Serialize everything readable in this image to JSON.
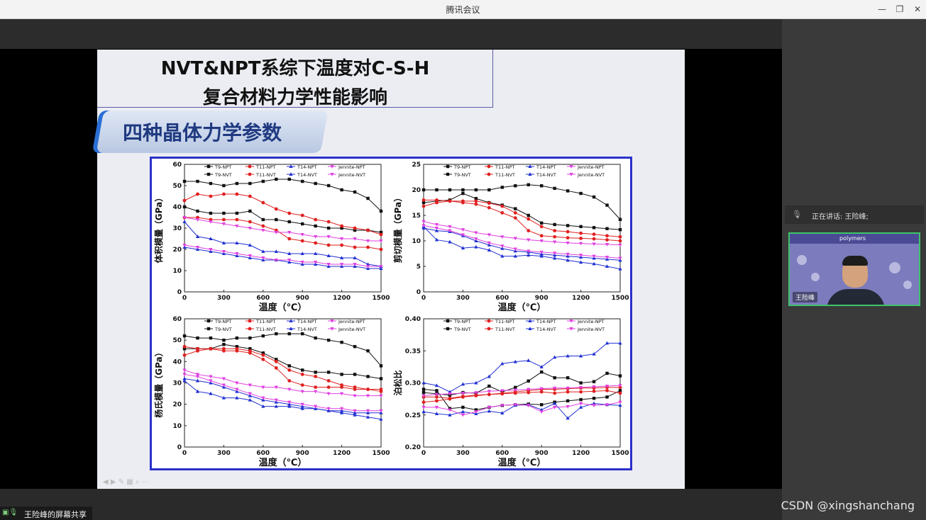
{
  "window": {
    "title": "腾讯会议"
  },
  "speaker": {
    "label": "正在讲话: 王险峰;",
    "name": "王险峰",
    "overlay_text": "polymers"
  },
  "share_label": "王险峰的屏幕共享",
  "watermark": "CSDN @xingshanchang",
  "slide": {
    "title_line1": "NVT&NPT系综下温度对C-S-H",
    "title_line2": "复合材料力学性能影响",
    "section": "四种晶体力学参数"
  },
  "chart_data": [
    {
      "type": "line",
      "ylabel": "体积模量（GPa）",
      "xlabel": "温度（℃）",
      "xlim": [
        0,
        1500
      ],
      "ylim": [
        0,
        60
      ],
      "xticks": [
        0,
        300,
        600,
        900,
        1200,
        1500
      ],
      "yticks": [
        0,
        10,
        20,
        30,
        40,
        50,
        60
      ],
      "x": [
        0,
        100,
        200,
        300,
        400,
        500,
        600,
        700,
        800,
        900,
        1000,
        1100,
        1200,
        1300,
        1400,
        1500
      ],
      "series": [
        {
          "name": "T9-NPT",
          "color": "#111111",
          "values": [
            52,
            52,
            51,
            50,
            51,
            51,
            52,
            53,
            53,
            52,
            51,
            50,
            48,
            47,
            44,
            38
          ]
        },
        {
          "name": "T9-NVT",
          "color": "#111111",
          "values": [
            40,
            38,
            37,
            37,
            37,
            38,
            34,
            34,
            33,
            32,
            31,
            30,
            30,
            29,
            29,
            28
          ]
        },
        {
          "name": "T11-NPT",
          "color": "#e02020",
          "values": [
            43,
            46,
            45,
            46,
            46,
            45,
            42,
            39,
            37,
            36,
            34,
            33,
            31,
            30,
            29,
            27
          ]
        },
        {
          "name": "T11-NVT",
          "color": "#e02020",
          "values": [
            35,
            35,
            34,
            34,
            34,
            33,
            31,
            29,
            25,
            24,
            23,
            22,
            22,
            21,
            21,
            20
          ]
        },
        {
          "name": "T14-NPT",
          "color": "#2030d0",
          "values": [
            33,
            26,
            25,
            23,
            23,
            22,
            19,
            19,
            18,
            18,
            18,
            17,
            16,
            16,
            13,
            12
          ]
        },
        {
          "name": "T14-NVT",
          "color": "#2030d0",
          "values": [
            21,
            20,
            19,
            18,
            17,
            16,
            15,
            15,
            14,
            13,
            13,
            12,
            12,
            12,
            11,
            11
          ]
        },
        {
          "name": "Jennite-NPT",
          "color": "#e040e0",
          "values": [
            35,
            34,
            33,
            32,
            31,
            30,
            29,
            28,
            28,
            27,
            26,
            26,
            25,
            25,
            24,
            24
          ]
        },
        {
          "name": "Jennite-NVT",
          "color": "#e040e0",
          "values": [
            22,
            21,
            20,
            19,
            18,
            17,
            16,
            15,
            15,
            14,
            14,
            13,
            13,
            13,
            12,
            12
          ]
        }
      ]
    },
    {
      "type": "line",
      "ylabel": "剪切模量（GPa）",
      "xlabel": "温度（℃）",
      "xlim": [
        0,
        1500
      ],
      "ylim": [
        0,
        25
      ],
      "xticks": [
        0,
        300,
        600,
        900,
        1200,
        1500
      ],
      "yticks": [
        0,
        5,
        10,
        15,
        20,
        25
      ],
      "x": [
        0,
        100,
        200,
        300,
        400,
        500,
        600,
        700,
        800,
        900,
        1000,
        1100,
        1200,
        1300,
        1400,
        1500
      ],
      "series": [
        {
          "name": "T9-NPT",
          "color": "#111111",
          "values": [
            20,
            20,
            20,
            20,
            20,
            20,
            20.5,
            20.8,
            21,
            20.8,
            20.3,
            19.8,
            19.3,
            18.6,
            17.0,
            14.2
          ]
        },
        {
          "name": "T9-NVT",
          "color": "#111111",
          "values": [
            17.5,
            17.8,
            18,
            19.3,
            18.3,
            17.5,
            17,
            16.3,
            15,
            13.5,
            13.2,
            13,
            12.8,
            12.6,
            12.4,
            12.2
          ]
        },
        {
          "name": "T11-NPT",
          "color": "#e02020",
          "values": [
            18,
            18,
            17.8,
            17.8,
            17.8,
            17.4,
            16.8,
            15.5,
            14.3,
            12.8,
            12,
            11.8,
            11.5,
            11.3,
            11,
            10.8
          ]
        },
        {
          "name": "T11-NVT",
          "color": "#e02020",
          "values": [
            16.8,
            17.5,
            17.8,
            17.5,
            17.2,
            16.5,
            15.5,
            14.5,
            12,
            11,
            10.8,
            10.6,
            10.5,
            10.4,
            10.2,
            10
          ]
        },
        {
          "name": "T14-NPT",
          "color": "#2030d0",
          "values": [
            12.8,
            10.2,
            9.8,
            8.6,
            8.8,
            8.2,
            7,
            7,
            7.2,
            7,
            6.6,
            6.2,
            5.8,
            5.5,
            5,
            4.5
          ]
        },
        {
          "name": "T14-NVT",
          "color": "#2030d0",
          "values": [
            12.5,
            12,
            11.8,
            11,
            10,
            9.2,
            8.5,
            8,
            7.8,
            7.4,
            7.2,
            7,
            6.8,
            6.6,
            6.4,
            6.2
          ]
        },
        {
          "name": "Jennite-NPT",
          "color": "#e040e0",
          "values": [
            13.8,
            13.2,
            12.8,
            12.2,
            11.6,
            11.2,
            10.8,
            10.5,
            10.2,
            10,
            9.8,
            9.6,
            9.5,
            9.4,
            9.3,
            9.2
          ]
        },
        {
          "name": "Jennite-NVT",
          "color": "#e040e0",
          "values": [
            13,
            12.5,
            12,
            11.2,
            10.4,
            9.6,
            9,
            8.4,
            8,
            7.8,
            7.6,
            7.4,
            7.2,
            7,
            6.8,
            6.6
          ]
        }
      ]
    },
    {
      "type": "line",
      "ylabel": "杨氏模量（GPa）",
      "xlabel": "温度（℃）",
      "xlim": [
        0,
        1500
      ],
      "ylim": [
        0,
        60
      ],
      "xticks": [
        0,
        300,
        600,
        900,
        1200,
        1500
      ],
      "yticks": [
        0,
        10,
        20,
        30,
        40,
        50,
        60
      ],
      "x": [
        0,
        100,
        200,
        300,
        400,
        500,
        600,
        700,
        800,
        900,
        1000,
        1100,
        1200,
        1300,
        1400,
        1500
      ],
      "series": [
        {
          "name": "T9-NPT",
          "color": "#111111",
          "values": [
            52,
            51,
            51,
            50,
            51,
            51,
            52,
            53,
            53,
            53,
            51,
            50,
            49,
            47,
            45,
            38
          ]
        },
        {
          "name": "T9-NVT",
          "color": "#111111",
          "values": [
            46,
            46,
            46,
            48,
            47,
            46,
            44,
            41,
            38,
            36,
            35,
            35,
            34,
            34,
            33,
            32
          ]
        },
        {
          "name": "T11-NPT",
          "color": "#e02020",
          "values": [
            43,
            45,
            46,
            46,
            46,
            45,
            43,
            40,
            36,
            34,
            33,
            31,
            29,
            28,
            27,
            26
          ]
        },
        {
          "name": "T11-NVT",
          "color": "#e02020",
          "values": [
            47,
            46,
            46,
            45,
            45,
            44,
            41,
            37,
            31,
            29,
            28,
            28,
            28,
            27,
            27,
            27
          ]
        },
        {
          "name": "T14-NPT",
          "color": "#2030d0",
          "values": [
            31,
            26,
            25,
            23,
            23,
            22,
            19,
            19,
            19,
            18,
            18,
            17,
            16,
            15,
            14,
            13
          ]
        },
        {
          "name": "T14-NVT",
          "color": "#2030d0",
          "values": [
            32,
            31,
            30,
            28,
            26,
            24,
            22,
            21,
            20,
            19,
            18,
            17,
            17,
            16,
            16,
            16
          ]
        },
        {
          "name": "Jennite-NPT",
          "color": "#e040e0",
          "values": [
            36,
            34,
            33,
            32,
            30,
            29,
            28,
            28,
            27,
            26,
            26,
            25,
            25,
            24,
            24,
            24
          ]
        },
        {
          "name": "Jennite-NVT",
          "color": "#e040e0",
          "values": [
            34,
            33,
            31,
            29,
            27,
            25,
            23,
            22,
            21,
            20,
            19,
            18,
            18,
            17,
            17,
            17
          ]
        }
      ]
    },
    {
      "type": "line",
      "ylabel": "泊松比",
      "xlabel": "温度（℃）",
      "xlim": [
        0,
        1500
      ],
      "ylim": [
        0.2,
        0.4
      ],
      "xticks": [
        0,
        300,
        600,
        900,
        1200,
        1500
      ],
      "yticks": [
        0.2,
        0.25,
        0.3,
        0.35,
        0.4
      ],
      "x": [
        0,
        100,
        200,
        300,
        400,
        500,
        600,
        700,
        800,
        900,
        1000,
        1100,
        1200,
        1300,
        1400,
        1500
      ],
      "series": [
        {
          "name": "T9-NPT",
          "color": "#111111",
          "values": [
            0.29,
            0.288,
            0.26,
            0.262,
            0.258,
            0.262,
            0.265,
            0.266,
            0.267,
            0.266,
            0.27,
            0.272,
            0.274,
            0.276,
            0.278,
            0.288
          ]
        },
        {
          "name": "T9-NVT",
          "color": "#111111",
          "values": [
            0.285,
            0.283,
            0.281,
            0.285,
            0.284,
            0.295,
            0.286,
            0.293,
            0.303,
            0.317,
            0.308,
            0.308,
            0.3,
            0.302,
            0.315,
            0.311
          ]
        },
        {
          "name": "T11-NPT",
          "color": "#e02020",
          "values": [
            0.278,
            0.278,
            0.276,
            0.279,
            0.281,
            0.282,
            0.283,
            0.284,
            0.285,
            0.286,
            0.284,
            0.286,
            0.286,
            0.287,
            0.288,
            0.284
          ]
        },
        {
          "name": "T11-NVT",
          "color": "#e02020",
          "values": [
            0.27,
            0.272,
            0.275,
            0.278,
            0.28,
            0.282,
            0.284,
            0.286,
            0.288,
            0.29,
            0.29,
            0.291,
            0.292,
            0.292,
            0.293,
            0.293
          ]
        },
        {
          "name": "T14-NPT",
          "color": "#2030d0",
          "values": [
            0.3,
            0.296,
            0.286,
            0.298,
            0.3,
            0.31,
            0.33,
            0.333,
            0.335,
            0.325,
            0.34,
            0.342,
            0.342,
            0.345,
            0.362,
            0.362
          ]
        },
        {
          "name": "T14-NVT",
          "color": "#2030d0",
          "values": [
            0.255,
            0.252,
            0.25,
            0.255,
            0.252,
            0.256,
            0.253,
            0.265,
            0.266,
            0.258,
            0.268,
            0.245,
            0.262,
            0.268,
            0.266,
            0.265
          ]
        },
        {
          "name": "Jennite-NPT",
          "color": "#e040e0",
          "values": [
            0.28,
            0.282,
            0.283,
            0.284,
            0.285,
            0.287,
            0.288,
            0.289,
            0.29,
            0.291,
            0.292,
            0.292,
            0.293,
            0.294,
            0.295,
            0.296
          ]
        },
        {
          "name": "Jennite-NVT",
          "color": "#e040e0",
          "values": [
            0.262,
            0.262,
            0.258,
            0.25,
            0.255,
            0.262,
            0.265,
            0.266,
            0.265,
            0.255,
            0.262,
            0.263,
            0.268,
            0.265,
            0.266,
            0.27
          ]
        }
      ]
    }
  ]
}
